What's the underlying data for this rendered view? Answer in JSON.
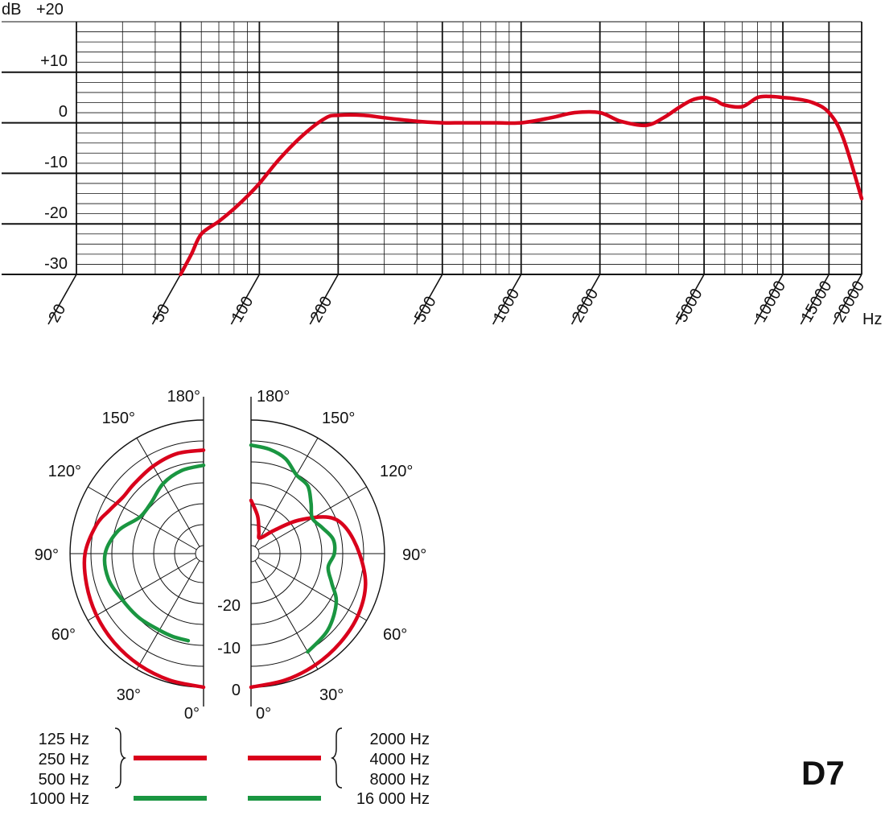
{
  "chart_data": [
    {
      "type": "line",
      "title": "",
      "xlabel": "Hz",
      "ylabel": "dB",
      "xscale": "log",
      "xlim": [
        20,
        20000
      ],
      "ylim": [
        -30,
        20
      ],
      "grid": true,
      "xticks": [
        20,
        50,
        100,
        200,
        500,
        1000,
        2000,
        5000,
        10000,
        15000,
        20000
      ],
      "x_tick_labels": [
        "20",
        "50",
        "100",
        "200",
        "500",
        "1000",
        "2000",
        "5000",
        "10000",
        "15000",
        "20000"
      ],
      "y_tick_labels": [
        "+20",
        "+10",
        "0",
        "-10",
        "-20",
        "-30"
      ],
      "series": [
        {
          "color": "#d9001b",
          "x": [
            50,
            55,
            60,
            70,
            80,
            90,
            100,
            120,
            150,
            180,
            200,
            250,
            300,
            400,
            500,
            600,
            800,
            1000,
            1300,
            1600,
            2000,
            2400,
            3000,
            3500,
            4000,
            4500,
            5000,
            5500,
            6000,
            7000,
            8000,
            9000,
            10000,
            11000,
            13000,
            15000,
            17000,
            20000
          ],
          "y": [
            -30,
            -26,
            -22,
            -19.5,
            -17,
            -14.5,
            -12,
            -7,
            -2,
            1,
            1.5,
            1.5,
            1,
            0.3,
            0,
            0,
            0,
            0,
            1,
            2,
            2,
            0.3,
            -0.5,
            1,
            3,
            4.5,
            5,
            4.5,
            3.5,
            3.2,
            5,
            5.2,
            5,
            4.8,
            4,
            2,
            -3,
            -15
          ]
        }
      ]
    },
    {
      "type": "polar",
      "title": "",
      "angle_labels": [
        "180°",
        "150°",
        "120°",
        "90°",
        "60°",
        "30°",
        "0°"
      ],
      "radial_labels": [
        "-20",
        "-10",
        "0"
      ],
      "rlim": [
        -25,
        0
      ],
      "series": [
        {
          "name": "125 Hz / 250 Hz / 500 Hz",
          "color": "#d9001b",
          "angles": [
            0,
            15,
            30,
            45,
            60,
            75,
            90,
            105,
            115,
            125,
            135,
            150,
            165,
            180
          ],
          "db": [
            0,
            -0.5,
            -1,
            -1.5,
            -2,
            -2.5,
            -3,
            -4.5,
            -6,
            -7,
            -7,
            -6.5,
            -6,
            -6
          ]
        },
        {
          "name": "1000 Hz",
          "color": "#1a9641",
          "angles": [
            10,
            20,
            30,
            45,
            60,
            75,
            90,
            105,
            120,
            135,
            150,
            165,
            180
          ],
          "db": [
            -9,
            -9,
            -9,
            -8.5,
            -8,
            -7,
            -7,
            -9,
            -12,
            -12,
            -10.5,
            -9.5,
            -9
          ]
        },
        {
          "name": "2000 Hz / 4000 Hz / 8000 Hz",
          "color": "#d9001b",
          "angles": [
            0,
            15,
            30,
            45,
            60,
            75,
            90,
            105,
            115,
            125,
            135,
            150,
            160,
            170,
            180
          ],
          "db": [
            0,
            -0.5,
            -1,
            -1.5,
            -2,
            -3,
            -5,
            -7,
            -9.5,
            -15,
            -20,
            -23,
            -22,
            -19,
            -16
          ]
        },
        {
          "name": "16000 Hz",
          "color": "#1a9641",
          "angles": [
            30,
            45,
            60,
            70,
            80,
            90,
            100,
            110,
            120,
            130,
            140,
            150,
            160,
            170,
            180
          ],
          "db": [
            -4,
            -5,
            -7,
            -9.5,
            -11,
            -10,
            -10,
            -11.5,
            -12.5,
            -11,
            -9,
            -8.5,
            -6.5,
            -5.5,
            -5
          ]
        }
      ]
    }
  ],
  "legend": {
    "left": {
      "labels": [
        "125 Hz",
        "250 Hz",
        "500 Hz",
        "1000 Hz"
      ]
    },
    "right": {
      "labels": [
        "2000 Hz",
        "4000 Hz",
        "8000 Hz",
        "16 000 Hz"
      ]
    },
    "colors": {
      "red": "#d9001b",
      "green": "#1a9641"
    }
  },
  "model": "D7"
}
